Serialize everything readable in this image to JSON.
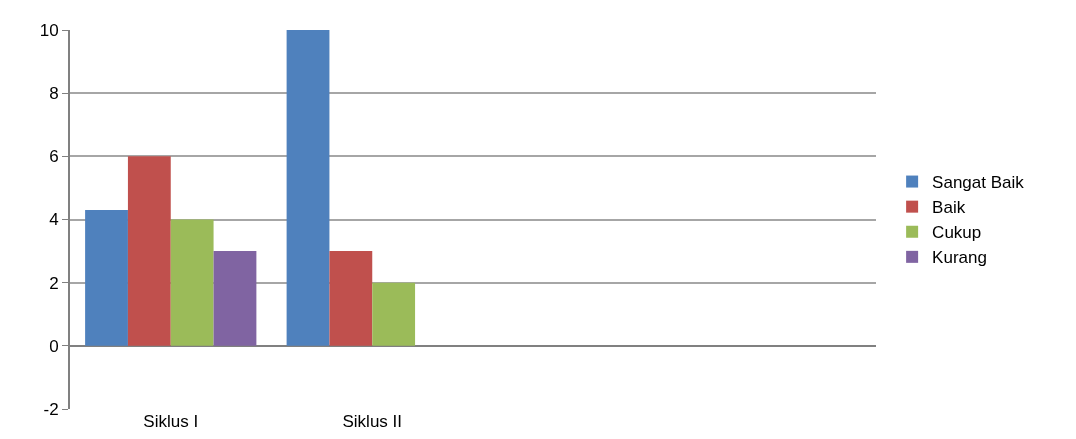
{
  "chart_data": {
    "type": "bar",
    "categories": [
      "Siklus I",
      "Siklus II",
      null,
      null
    ],
    "series": [
      {
        "name": "Sangat Baik",
        "color": "#4f81bd",
        "values": [
          4.3,
          10,
          null,
          null
        ]
      },
      {
        "name": "Baik",
        "color": "#c0504d",
        "values": [
          6,
          3,
          null,
          null
        ]
      },
      {
        "name": "Cukup",
        "color": "#9bbb59",
        "values": [
          4,
          2,
          null,
          null
        ]
      },
      {
        "name": "Kurang",
        "color": "#8064a2",
        "values": [
          3,
          0,
          null,
          null
        ]
      }
    ],
    "ylim": [
      -2,
      10
    ],
    "yticks": [
      -2,
      0,
      2,
      4,
      6,
      8,
      10
    ],
    "grid": "y",
    "legend": "right"
  }
}
